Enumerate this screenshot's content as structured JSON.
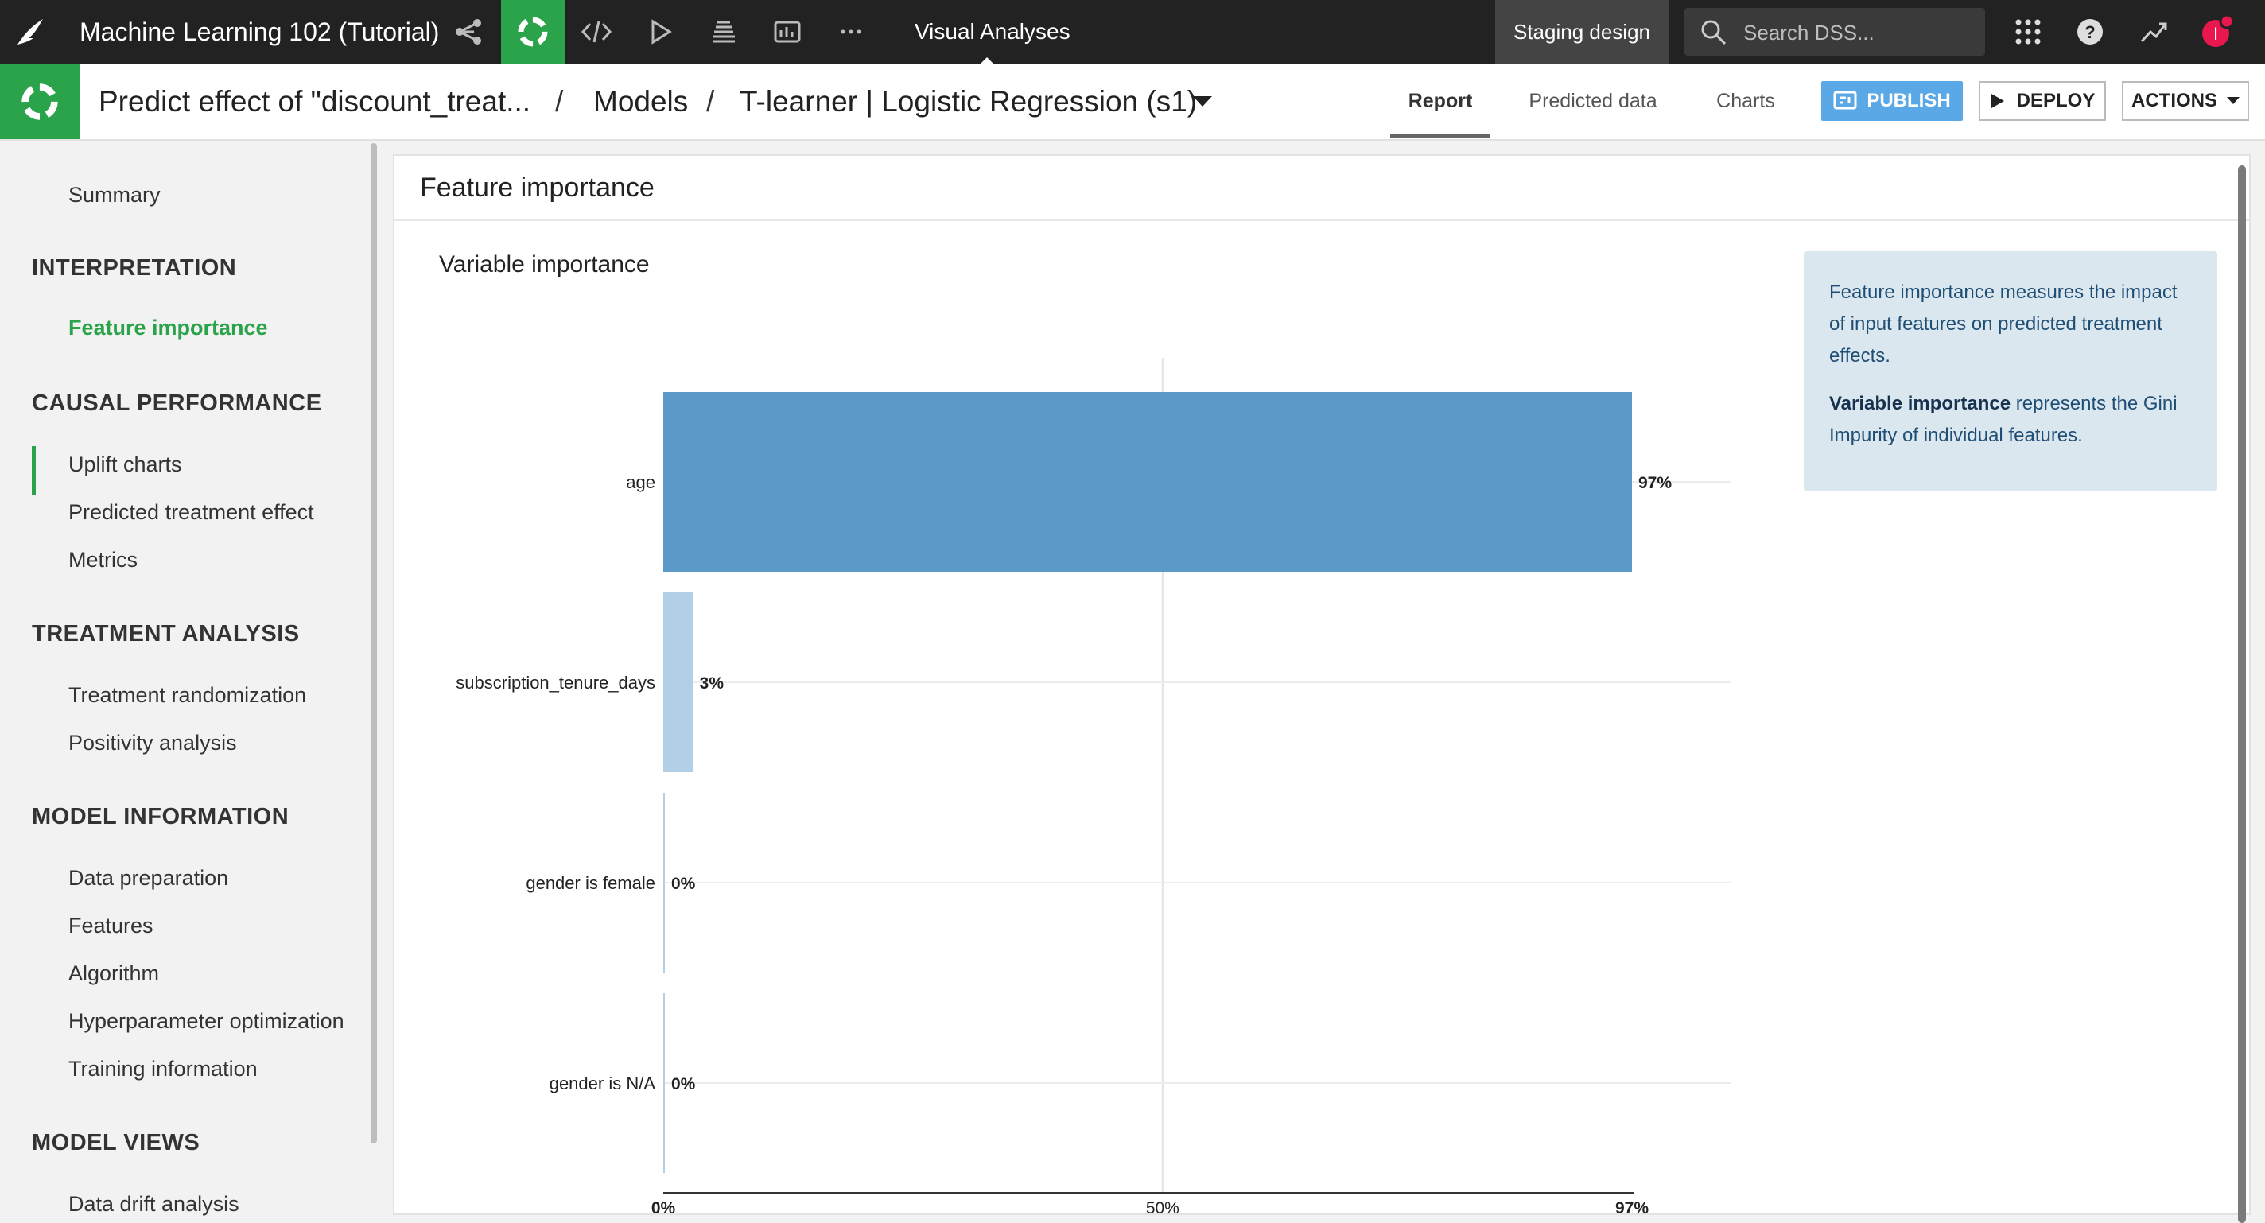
{
  "topbar": {
    "project_title": "Machine Learning 102 (Tutorial)",
    "analyses_label": "Visual Analyses",
    "staging_label": "Staging design",
    "search_placeholder": "Search DSS...",
    "icons": [
      "dataiku-bird-icon",
      "flow-icon",
      "lab-icon",
      "code-icon",
      "run-icon",
      "deploy-stack-icon",
      "dashboard-icon",
      "more-icon",
      "apps-grid-icon",
      "help-icon",
      "activity-trend-icon",
      "user-avatar-icon"
    ],
    "avatar_initial": "I",
    "colors": {
      "bar_bg": "#222222",
      "lab_green": "#2aa34a",
      "notification": "#e8174d"
    }
  },
  "breadcrumb": {
    "analysis": "Predict effect of \"discount_treat...",
    "section": "Models",
    "model": "T-learner | Logistic Regression (s1)"
  },
  "tabs": {
    "report": "Report",
    "predicted_data": "Predicted data",
    "charts": "Charts"
  },
  "buttons": {
    "publish": "PUBLISH",
    "deploy": "DEPLOY",
    "actions": "ACTIONS"
  },
  "sidebar": {
    "summary": "Summary",
    "sections": [
      {
        "title": "INTERPRETATION",
        "items": [
          "Feature importance"
        ]
      },
      {
        "title": "CAUSAL PERFORMANCE",
        "items": [
          "Uplift charts",
          "Predicted treatment effect",
          "Metrics"
        ]
      },
      {
        "title": "TREATMENT ANALYSIS",
        "items": [
          "Treatment randomization",
          "Positivity analysis"
        ]
      },
      {
        "title": "MODEL INFORMATION",
        "items": [
          "Data preparation",
          "Features",
          "Algorithm",
          "Hyperparameter optimization",
          "Training information"
        ]
      },
      {
        "title": "MODEL VIEWS",
        "items": [
          "Data drift analysis"
        ]
      }
    ],
    "active_item": "Feature importance"
  },
  "main": {
    "title": "Feature importance",
    "info_text_1": "Feature importance measures the impact of input features on predicted treatment effects.",
    "info_bold": "Variable importance",
    "info_text_2": " represents the Gini Impurity of individual features."
  },
  "chart_data": {
    "type": "bar",
    "orientation": "horizontal",
    "title": "Variable importance",
    "categories": [
      "age",
      "subscription_tenure_days",
      "gender is female",
      "gender is N/A"
    ],
    "values": [
      97,
      3,
      0,
      0
    ],
    "value_labels": [
      "97%",
      "3%",
      "0%",
      "0%"
    ],
    "x_ticks": [
      0,
      50,
      97
    ],
    "x_tick_labels": [
      "0%",
      "50%",
      "97%"
    ],
    "xlim": [
      0,
      97
    ],
    "grid": true,
    "colors": {
      "primary": "#5b99c8",
      "secondary": "#b2cfe5"
    }
  }
}
